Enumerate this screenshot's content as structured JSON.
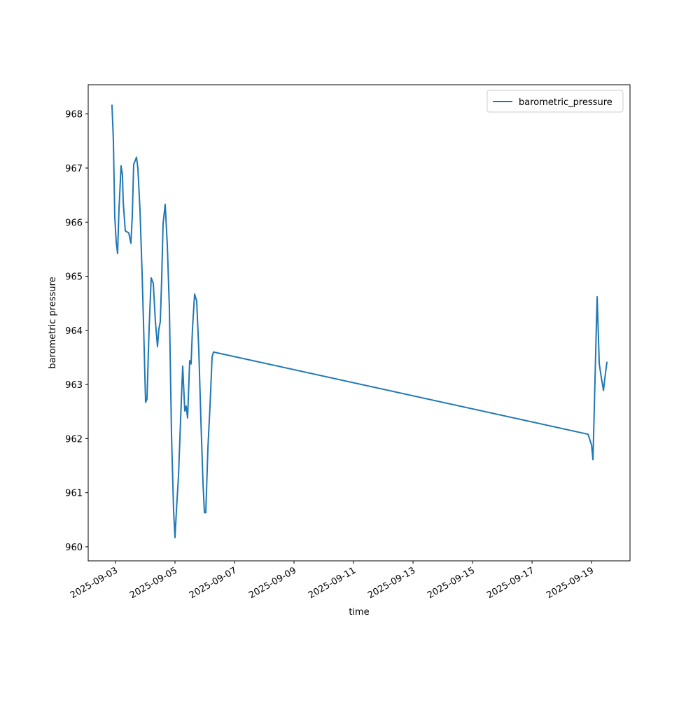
{
  "chart_data": {
    "type": "line",
    "x_label": "time",
    "y_label": "barometric pressure",
    "series": [
      {
        "name": "barometric_pressure",
        "color": "#1f77b4",
        "x": [
          "2025-09-02T21:10",
          "2025-09-02T22:18",
          "2025-09-02T23:26",
          "2025-09-03T00:34",
          "2025-09-03T01:42",
          "2025-09-03T02:49",
          "2025-09-03T04:31",
          "2025-09-03T05:39",
          "2025-09-03T06:13",
          "2025-09-03T07:54",
          "2025-09-03T10:44",
          "2025-09-03T12:25",
          "2025-09-03T13:33",
          "2025-09-03T14:41",
          "2025-09-03T15:49",
          "2025-09-03T16:56",
          "2025-09-03T18:04",
          "2025-09-03T19:46",
          "2025-09-03T21:28",
          "2025-09-03T22:35",
          "2025-09-04T00:17",
          "2025-09-04T01:25",
          "2025-09-04T03:07",
          "2025-09-04T04:48",
          "2025-09-04T06:30",
          "2025-09-04T08:12",
          "2025-09-04T09:53",
          "2025-09-04T11:01",
          "2025-09-04T12:09",
          "2025-09-04T13:16",
          "2025-09-04T14:24",
          "2025-09-04T16:06",
          "2025-09-04T17:48",
          "2025-09-04T19:29",
          "2025-09-04T21:11",
          "2025-09-04T22:53",
          "2025-09-05T00:00",
          "2025-09-05T01:08",
          "2025-09-05T02:50",
          "2025-09-05T04:31",
          "2025-09-05T06:13",
          "2025-09-05T07:55",
          "2025-09-05T09:02",
          "2025-09-05T10:10",
          "2025-09-05T11:52",
          "2025-09-05T12:59",
          "2025-09-05T14:07",
          "2025-09-05T15:49",
          "2025-09-05T17:31",
          "2025-09-05T19:12",
          "2025-09-05T20:54",
          "2025-09-05T22:36",
          "2025-09-05T23:44",
          "2025-09-06T00:51",
          "2025-09-06T02:33",
          "2025-09-06T04:15",
          "2025-09-06T05:56",
          "2025-09-06T07:04",
          "2025-09-18T21:11",
          "2025-09-19T00:00",
          "2025-09-19T01:08",
          "2025-09-19T02:15",
          "2025-09-19T03:57",
          "2025-09-19T04:31",
          "2025-09-19T06:13",
          "2025-09-19T07:55",
          "2025-09-19T09:36",
          "2025-09-19T10:44",
          "2025-09-19T12:25"
        ],
        "values": [
          968.17,
          967.52,
          966.1,
          965.64,
          965.42,
          966.23,
          967.04,
          966.87,
          966.38,
          965.84,
          965.8,
          965.61,
          966.1,
          967.07,
          967.13,
          967.2,
          967.0,
          966.23,
          965.06,
          964.16,
          962.67,
          962.73,
          964.03,
          964.97,
          964.87,
          964.16,
          963.7,
          964.03,
          964.16,
          964.94,
          965.97,
          966.33,
          965.58,
          964.41,
          962.08,
          960.66,
          960.17,
          960.66,
          961.31,
          962.34,
          963.34,
          962.51,
          962.6,
          962.38,
          963.44,
          963.38,
          964.03,
          964.67,
          964.54,
          963.64,
          962.34,
          961.18,
          960.63,
          960.63,
          961.82,
          962.6,
          963.51,
          963.6,
          962.08,
          961.88,
          961.61,
          962.6,
          964.16,
          964.62,
          963.38,
          963.12,
          962.89,
          963.12,
          963.42
        ]
      }
    ],
    "xlim": [
      "2025-09-02T02:00",
      "2025-09-20T07:00"
    ],
    "xticks": [
      "2025-09-03",
      "2025-09-05",
      "2025-09-07",
      "2025-09-09",
      "2025-09-11",
      "2025-09-13",
      "2025-09-15",
      "2025-09-17",
      "2025-09-19"
    ],
    "ylim": [
      959.74,
      968.54
    ],
    "yticks": [
      960,
      961,
      962,
      963,
      964,
      965,
      966,
      967,
      968
    ],
    "grid": false,
    "legend": "upper right"
  }
}
